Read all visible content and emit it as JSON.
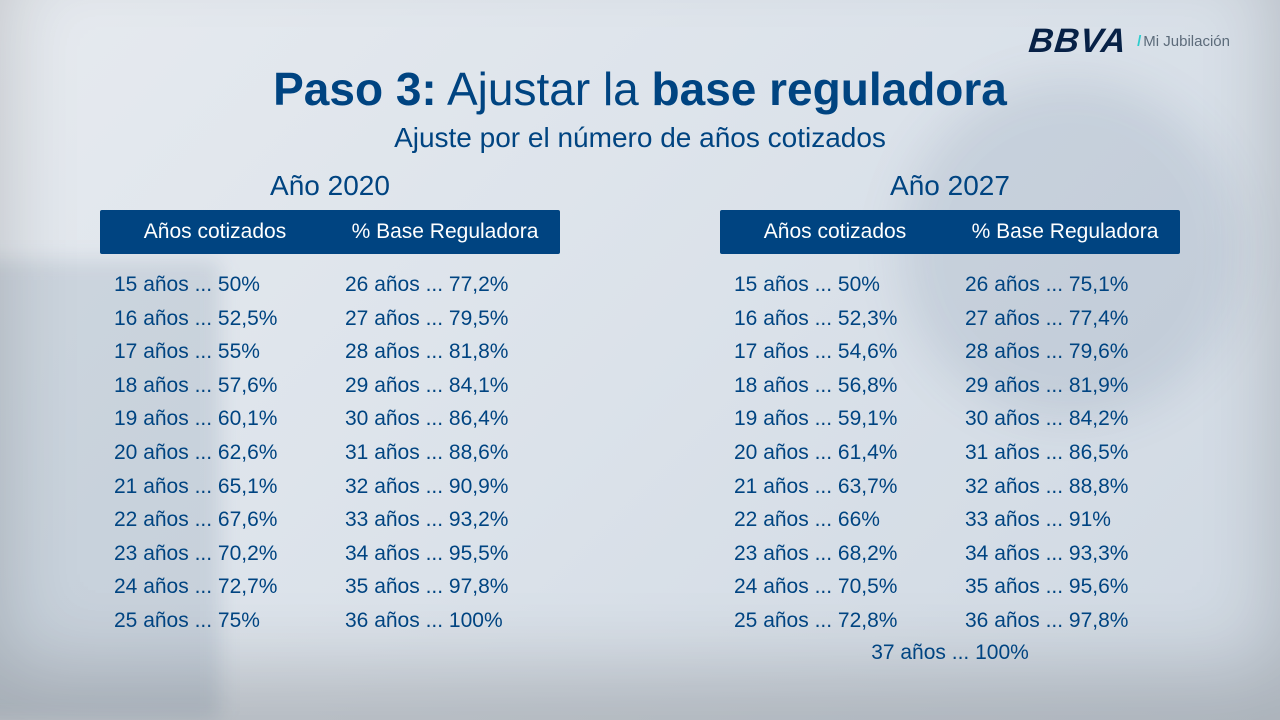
{
  "colors": {
    "brand_primary": "#072146",
    "brand_accent": "#2dcccd",
    "brand_sub": "#5c6b7a",
    "title": "#004481",
    "subtitle": "#004481",
    "year_title": "#004481",
    "header_bg": "#004481",
    "data_text": "#004481"
  },
  "brand": {
    "logo": "BBVA",
    "slash": "/",
    "sub": "Mi Jubilación"
  },
  "title": {
    "bold_prefix": "Paso 3:",
    "mid": " Ajustar la ",
    "bold_suffix": "base reguladora"
  },
  "subtitle": "Ajuste por el número de años cotizados",
  "table_headers": {
    "col1": "Años cotizados",
    "col2": "% Base Reguladora"
  },
  "tables": [
    {
      "year_label": "Año 2020",
      "columns": [
        [
          "15 años ... 50%",
          "16 años ... 52,5%",
          "17 años ... 55%",
          "18 años ... 57,6%",
          "19 años ... 60,1%",
          "20 años ... 62,6%",
          "21 años ... 65,1%",
          "22 años ... 67,6%",
          "23 años ... 70,2%",
          "24 años ... 72,7%",
          "25 años ... 75%"
        ],
        [
          "26 años ... 77,2%",
          "27 años ... 79,5%",
          "28 años ... 81,8%",
          "29 años ... 84,1%",
          "30 años ... 86,4%",
          "31 años ... 88,6%",
          "32 años ... 90,9%",
          "33 años ... 93,2%",
          "34 años ... 95,5%",
          "35 años ... 97,8%",
          "36 años ... 100%"
        ]
      ],
      "extra_row": ""
    },
    {
      "year_label": "Año 2027",
      "columns": [
        [
          "15 años ... 50%",
          "16 años ... 52,3%",
          "17 años ... 54,6%",
          "18 años ... 56,8%",
          "19 años ... 59,1%",
          "20 años ... 61,4%",
          "21 años ... 63,7%",
          "22 años ... 66%",
          "23 años ... 68,2%",
          "24 años ... 70,5%",
          "25 años ... 72,8%"
        ],
        [
          "26 años ... 75,1%",
          "27 años ... 77,4%",
          "28 años ... 79,6%",
          "29 años ... 81,9%",
          "30 años ... 84,2%",
          "31 años ... 86,5%",
          "32 años ... 88,8%",
          "33 años ... 91%",
          "34 años ... 93,3%",
          "35 años ... 95,6%",
          "36 años ... 97,8%"
        ]
      ],
      "extra_row": "37 años ... 100%"
    }
  ]
}
